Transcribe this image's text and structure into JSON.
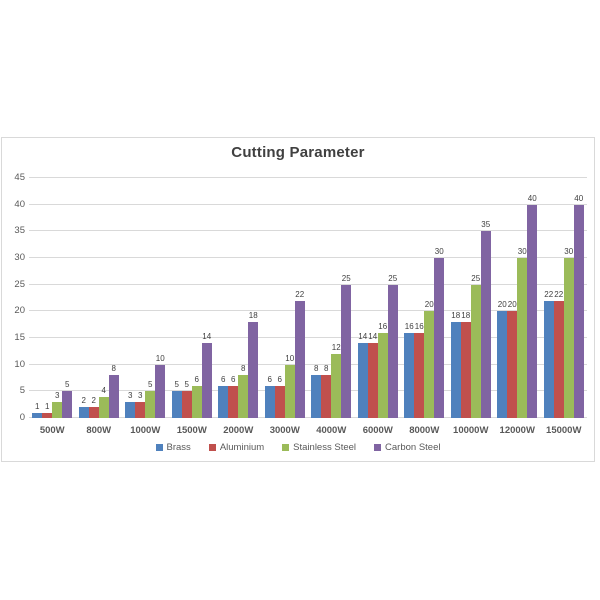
{
  "chart_data": {
    "type": "bar",
    "title": "Cutting Parameter",
    "categories": [
      "500W",
      "800W",
      "1000W",
      "1500W",
      "2000W",
      "3000W",
      "4000W",
      "6000W",
      "8000W",
      "10000W",
      "12000W",
      "15000W"
    ],
    "series": [
      {
        "name": "Brass",
        "color": "#4F81BD",
        "values": [
          1,
          2,
          3,
          5,
          6,
          6,
          8,
          14,
          16,
          18,
          20,
          22
        ]
      },
      {
        "name": "Aluminium",
        "color": "#C0504D",
        "values": [
          1,
          2,
          3,
          5,
          6,
          6,
          8,
          14,
          16,
          18,
          20,
          22
        ]
      },
      {
        "name": "Stainless Steel",
        "color": "#9BBB59",
        "values": [
          3,
          4,
          5,
          6,
          8,
          10,
          12,
          16,
          20,
          25,
          30,
          30
        ]
      },
      {
        "name": "Carbon Steel",
        "color": "#8064A2",
        "values": [
          5,
          8,
          10,
          14,
          18,
          22,
          25,
          25,
          30,
          35,
          40,
          40
        ]
      }
    ],
    "xlabel": "",
    "ylabel": "",
    "ylim": [
      0,
      45
    ],
    "ytick_step": 5,
    "grid": true,
    "legend_position": "bottom",
    "data_labels": true
  },
  "style": {
    "grid_color": "#D9D9D9",
    "frame_border_color": "#D9D9D9",
    "title_color": "#404040",
    "axis_text_color": "#595959",
    "data_label_color": "#404040",
    "background": "#FFFFFF"
  }
}
